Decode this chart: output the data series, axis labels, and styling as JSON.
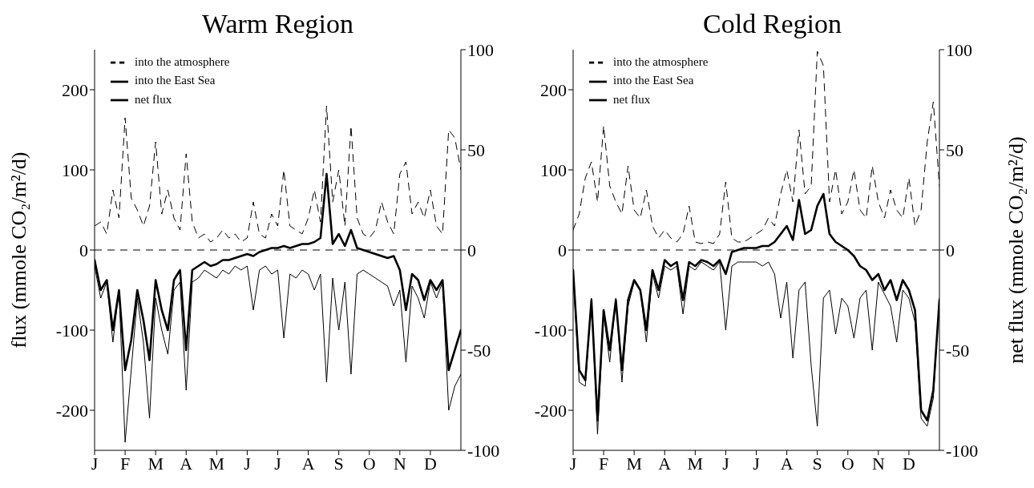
{
  "chart_data": [
    {
      "type": "line",
      "title": "Warm Region",
      "ylabel": "flux (mmole CO₂/m²/d)",
      "categories": [
        "J",
        null,
        null,
        null,
        null,
        "F",
        null,
        null,
        null,
        null,
        "M",
        null,
        null,
        null,
        null,
        "A",
        null,
        null,
        null,
        null,
        "M",
        null,
        null,
        null,
        null,
        "J",
        null,
        null,
        null,
        null,
        "J",
        null,
        null,
        null,
        null,
        "A",
        null,
        null,
        null,
        null,
        "S",
        null,
        null,
        null,
        null,
        "O",
        null,
        null,
        null,
        null,
        "N",
        null,
        null,
        null,
        null,
        "D",
        null,
        null,
        null,
        null,
        null
      ],
      "ylim": [
        -250,
        250
      ],
      "yticks": [
        -200,
        -100,
        0,
        100,
        200
      ],
      "y2lim": [
        -100,
        100
      ],
      "y2ticks": [
        -100,
        -50,
        0,
        50,
        100
      ],
      "grid": false,
      "legend": "top left",
      "ref_lines": [
        {
          "axis": "y",
          "value": 0,
          "line_style": "dashed",
          "color": "#000000"
        }
      ],
      "series": [
        {
          "name": "into the atmosphere",
          "color": "#000000",
          "line_style": "dashed",
          "values": [
            30,
            35,
            20,
            75,
            40,
            165,
            65,
            50,
            30,
            55,
            135,
            45,
            75,
            40,
            25,
            120,
            35,
            15,
            20,
            10,
            15,
            25,
            15,
            20,
            10,
            15,
            60,
            20,
            15,
            45,
            30,
            100,
            30,
            25,
            20,
            40,
            75,
            35,
            180,
            60,
            100,
            30,
            155,
            40,
            20,
            15,
            25,
            60,
            35,
            20,
            95,
            110,
            45,
            60,
            40,
            75,
            30,
            20,
            150,
            140,
            100
          ]
        },
        {
          "name": "into the East Sea",
          "color": "#000000",
          "line_style": "solid",
          "values": [
            -20,
            -60,
            -40,
            -115,
            -50,
            -240,
            -150,
            -60,
            -115,
            -210,
            -60,
            -100,
            -130,
            -50,
            -40,
            -175,
            -40,
            -35,
            -25,
            -30,
            -35,
            -25,
            -30,
            -20,
            -25,
            -20,
            -75,
            -25,
            -20,
            -30,
            -25,
            -110,
            -30,
            -35,
            -25,
            -30,
            -50,
            -30,
            -165,
            -35,
            -100,
            -40,
            -155,
            -30,
            -25,
            -30,
            -35,
            -40,
            -45,
            -70,
            -50,
            -140,
            -45,
            -60,
            -85,
            -40,
            -60,
            -40,
            -200,
            -170,
            -155
          ]
        },
        {
          "name": "net flux",
          "color": "#000000",
          "line_style": "solid",
          "axis": "y2",
          "values": [
            -5,
            -20,
            -15,
            -40,
            -20,
            -60,
            -45,
            -20,
            -35,
            -55,
            -15,
            -30,
            -40,
            -15,
            -10,
            -50,
            -10,
            -8,
            -6,
            -8,
            -7,
            -5,
            -5,
            -4,
            -3,
            -2,
            -3,
            -1,
            0,
            1,
            1,
            2,
            1,
            2,
            3,
            3,
            4,
            6,
            38,
            3,
            8,
            2,
            10,
            1,
            0,
            -1,
            -2,
            -3,
            -4,
            -3,
            -10,
            -30,
            -12,
            -15,
            -25,
            -15,
            -20,
            -15,
            -60,
            -50,
            -40
          ]
        }
      ]
    },
    {
      "type": "line",
      "title": "Cold Region",
      "y2label": "net flux (mmole CO₂/m²/d)",
      "categories": [
        "J",
        null,
        null,
        null,
        null,
        "F",
        null,
        null,
        null,
        null,
        "M",
        null,
        null,
        null,
        null,
        "A",
        null,
        null,
        null,
        null,
        "M",
        null,
        null,
        null,
        null,
        "J",
        null,
        null,
        null,
        null,
        "J",
        null,
        null,
        null,
        null,
        "A",
        null,
        null,
        null,
        null,
        "S",
        null,
        null,
        null,
        null,
        "O",
        null,
        null,
        null,
        null,
        "N",
        null,
        null,
        null,
        null,
        "D",
        null,
        null,
        null,
        null,
        null
      ],
      "ylim": [
        -250,
        250
      ],
      "yticks": [
        -200,
        -100,
        0,
        100,
        200
      ],
      "y2lim": [
        -100,
        100
      ],
      "y2ticks": [
        -100,
        -50,
        0,
        50,
        100
      ],
      "grid": false,
      "legend": "top left",
      "ref_lines": [
        {
          "axis": "y",
          "value": 0,
          "line_style": "dashed",
          "color": "#000000"
        }
      ],
      "series": [
        {
          "name": "into the atmosphere",
          "color": "#000000",
          "line_style": "dashed",
          "values": [
            25,
            45,
            90,
            110,
            60,
            155,
            80,
            60,
            45,
            105,
            50,
            40,
            75,
            30,
            15,
            25,
            15,
            10,
            20,
            55,
            10,
            8,
            10,
            8,
            20,
            85,
            15,
            10,
            10,
            15,
            20,
            25,
            40,
            30,
            70,
            100,
            60,
            150,
            70,
            80,
            248,
            230,
            60,
            100,
            45,
            60,
            100,
            50,
            40,
            105,
            60,
            40,
            75,
            50,
            40,
            90,
            30,
            50,
            135,
            185,
            80
          ]
        },
        {
          "name": "into the East Sea",
          "color": "#000000",
          "line_style": "solid",
          "values": [
            -30,
            -165,
            -170,
            -60,
            -230,
            -80,
            -140,
            -60,
            -165,
            -70,
            -40,
            -50,
            -115,
            -30,
            -60,
            -20,
            -25,
            -20,
            -80,
            -20,
            -25,
            -15,
            -20,
            -25,
            -15,
            -100,
            -20,
            -15,
            -15,
            -15,
            -15,
            -20,
            -15,
            -30,
            -85,
            -40,
            -135,
            -50,
            -40,
            -145,
            -220,
            -60,
            -50,
            -105,
            -60,
            -70,
            -110,
            -60,
            -50,
            -125,
            -40,
            -55,
            -70,
            -115,
            -50,
            -60,
            -90,
            -210,
            -220,
            -185,
            -60
          ]
        },
        {
          "name": "net flux",
          "color": "#000000",
          "line_style": "solid",
          "axis": "y2",
          "values": [
            -10,
            -60,
            -65,
            -25,
            -85,
            -30,
            -50,
            -25,
            -60,
            -25,
            -15,
            -20,
            -40,
            -10,
            -20,
            -5,
            -8,
            -6,
            -25,
            -6,
            -8,
            -5,
            -6,
            -8,
            -5,
            -12,
            -1,
            0,
            1,
            1,
            1,
            2,
            2,
            4,
            8,
            12,
            5,
            25,
            8,
            10,
            22,
            28,
            8,
            4,
            2,
            0,
            -3,
            -8,
            -10,
            -15,
            -12,
            -20,
            -15,
            -25,
            -15,
            -20,
            -30,
            -80,
            -85,
            -70,
            -25
          ]
        }
      ]
    }
  ]
}
